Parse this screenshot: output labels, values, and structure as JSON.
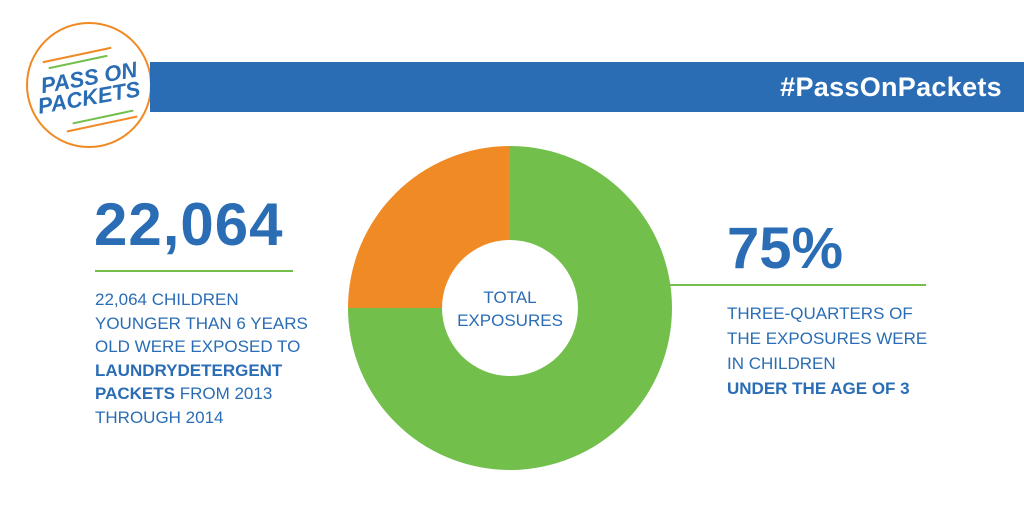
{
  "header": {
    "logo_line1": "PASS ON",
    "logo_line2": "PACKETS",
    "hashtag": "#PassOnPackets"
  },
  "left": {
    "big_number": "22,064",
    "line1": "22,064 CHILDREN",
    "line2": "YOUNGER THAN 6 YEARS",
    "line3": "OLD WERE EXPOSED TO",
    "line4_bold": "LAUNDRYDETERGENT",
    "line5_bold": "PACKETS",
    "line5_rest": " FROM 2013",
    "line6": "THROUGH 2014"
  },
  "right": {
    "percent": "75%",
    "line1": "THREE-QUARTERS OF",
    "line2": "THE EXPOSURES WERE",
    "line3": "IN CHILDREN",
    "line4_bold": "UNDER THE AGE OF 3"
  },
  "chart_data": {
    "type": "pie",
    "center_label_line1": "TOTAL",
    "center_label_line2": "EXPOSURES",
    "slices": [
      {
        "value": 75,
        "color": "#72bf4b"
      },
      {
        "value": 25,
        "color": "#f08a24"
      }
    ]
  },
  "colors": {
    "brand_blue": "#2a6db5",
    "accent_orange": "#f08a24",
    "accent_green": "#72bf4b"
  }
}
